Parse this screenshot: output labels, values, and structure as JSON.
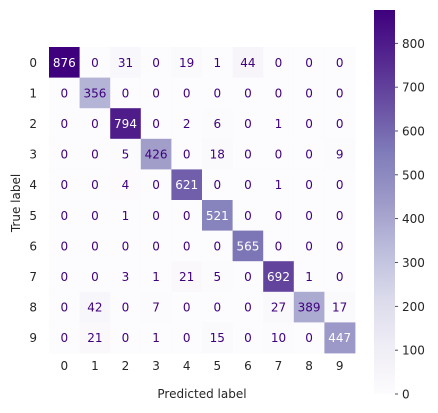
{
  "chart_data": {
    "type": "heatmap",
    "title": "",
    "xlabel": "Predicted label",
    "ylabel": "True label",
    "x_categories": [
      "0",
      "1",
      "2",
      "3",
      "4",
      "5",
      "6",
      "7",
      "8",
      "9"
    ],
    "y_categories": [
      "0",
      "1",
      "2",
      "3",
      "4",
      "5",
      "6",
      "7",
      "8",
      "9"
    ],
    "values": [
      [
        876,
        0,
        31,
        0,
        19,
        1,
        44,
        0,
        0,
        0
      ],
      [
        0,
        356,
        0,
        0,
        0,
        0,
        0,
        0,
        0,
        0
      ],
      [
        0,
        0,
        794,
        0,
        2,
        6,
        0,
        1,
        0,
        0
      ],
      [
        0,
        0,
        5,
        426,
        0,
        18,
        0,
        0,
        0,
        9
      ],
      [
        0,
        0,
        4,
        0,
        621,
        0,
        0,
        1,
        0,
        0
      ],
      [
        0,
        0,
        1,
        0,
        0,
        521,
        0,
        0,
        0,
        0
      ],
      [
        0,
        0,
        0,
        0,
        0,
        0,
        565,
        0,
        0,
        0
      ],
      [
        0,
        0,
        3,
        1,
        21,
        5,
        0,
        692,
        1,
        0
      ],
      [
        0,
        42,
        0,
        7,
        0,
        0,
        0,
        27,
        389,
        17
      ],
      [
        0,
        21,
        0,
        1,
        0,
        15,
        0,
        10,
        0,
        447
      ]
    ],
    "colormap": "Purples",
    "color_low": "#fcfbfd",
    "color_high": "#3f007d",
    "value_range": [
      0,
      876
    ],
    "colorbar_ticks": [
      0,
      100,
      200,
      300,
      400,
      500,
      600,
      700,
      800
    ],
    "grid": false,
    "legend": "colorbar-right"
  }
}
